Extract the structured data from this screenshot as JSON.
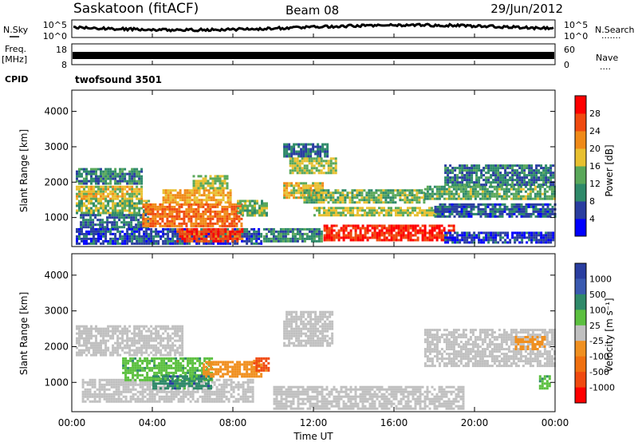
{
  "header": {
    "station": "Saskatoon (fitACF)",
    "beam": "Beam 08",
    "date": "29/Jun/2012"
  },
  "status_panel": {
    "nsky_label": "N.Sky",
    "nsearch_label": "N.Search",
    "nsky_ticks": [
      "10^5",
      "10^0"
    ],
    "nsearch_ticks": [
      "10^5",
      "10^0"
    ],
    "freq_label": "Freq.",
    "freq_unit": "[MHz]",
    "freq_ticks": [
      "18",
      "8"
    ],
    "nave_label": "Nave",
    "nave_ticks": [
      "60",
      "0"
    ],
    "cpid_label": "CPID",
    "cpid_value": "twofsound 3501"
  },
  "x_axis": {
    "label": "Time UT",
    "ticks": [
      "00:00",
      "04:00",
      "08:00",
      "12:00",
      "16:00",
      "20:00",
      "00:00"
    ]
  },
  "colors": {
    "power_scale": [
      "#0000ff",
      "#2a3ea0",
      "#2f8a6a",
      "#5aa85a",
      "#e8c030",
      "#f08a18",
      "#f04a10",
      "#ff0000"
    ],
    "velocity_scale": [
      "#ff0000",
      "#f04a10",
      "#f09020",
      "#c0c0c0",
      "#c0c0c0",
      "#5cc040",
      "#2f8a6a",
      "#2a3ea0",
      "#0000ff"
    ],
    "ground_scatter": "#c0c0c0"
  },
  "chart_data": [
    {
      "type": "heatmap",
      "title": "",
      "xlabel": "Time UT",
      "ylabel": "Slant Range [km]",
      "xlim_hours": [
        0,
        24
      ],
      "ylim": [
        180,
        4600
      ],
      "yticks": [
        1000,
        2000,
        3000,
        4000
      ],
      "colorbar": {
        "label": "Power [dB]",
        "range": [
          0,
          32
        ],
        "ticks": [
          4,
          8,
          12,
          16,
          20,
          24,
          28
        ]
      },
      "regions": [
        {
          "t0": 0.2,
          "t1": 3.5,
          "r0": 1900,
          "r1": 2400,
          "value": 10
        },
        {
          "t0": 0.2,
          "t1": 3.5,
          "r0": 1500,
          "r1": 1900,
          "value": 18
        },
        {
          "t0": 0.2,
          "t1": 4.0,
          "r0": 1100,
          "r1": 1500,
          "value": 14
        },
        {
          "t0": 0.4,
          "t1": 3.8,
          "r0": 700,
          "r1": 1100,
          "value": 8
        },
        {
          "t0": 0.2,
          "t1": 9.5,
          "r0": 200,
          "r1": 700,
          "value": 6
        },
        {
          "t0": 3.5,
          "t1": 8.5,
          "r0": 700,
          "r1": 1400,
          "value": 24
        },
        {
          "t0": 4.5,
          "t1": 8.0,
          "r0": 1400,
          "r1": 1800,
          "value": 20
        },
        {
          "t0": 6.0,
          "t1": 7.8,
          "r0": 1800,
          "r1": 2200,
          "value": 16
        },
        {
          "t0": 5.2,
          "t1": 8.5,
          "r0": 300,
          "r1": 700,
          "value": 27
        },
        {
          "t0": 8.2,
          "t1": 9.8,
          "r0": 1000,
          "r1": 1500,
          "value": 14
        },
        {
          "t0": 10.5,
          "t1": 12.8,
          "r0": 2700,
          "r1": 3100,
          "value": 8
        },
        {
          "t0": 10.8,
          "t1": 13.2,
          "r0": 2200,
          "r1": 2700,
          "value": 16
        },
        {
          "t0": 10.5,
          "t1": 12.5,
          "r0": 1500,
          "r1": 2000,
          "value": 18
        },
        {
          "t0": 11.5,
          "t1": 17.5,
          "r0": 1400,
          "r1": 1800,
          "value": 14
        },
        {
          "t0": 12.0,
          "t1": 18.5,
          "r0": 1000,
          "r1": 1300,
          "value": 16
        },
        {
          "t0": 12.5,
          "t1": 19.0,
          "r0": 350,
          "r1": 800,
          "value": 28
        },
        {
          "t0": 9.5,
          "t1": 12.5,
          "r0": 300,
          "r1": 700,
          "value": 10
        },
        {
          "t0": 17.5,
          "t1": 24.0,
          "r0": 1500,
          "r1": 1900,
          "value": 13
        },
        {
          "t0": 18.5,
          "t1": 24.0,
          "r0": 1900,
          "r1": 2500,
          "value": 9
        },
        {
          "t0": 18.0,
          "t1": 24.0,
          "r0": 1000,
          "r1": 1400,
          "value": 7
        },
        {
          "t0": 18.5,
          "t1": 24.0,
          "r0": 250,
          "r1": 600,
          "value": 5
        }
      ]
    },
    {
      "type": "heatmap",
      "title": "",
      "xlabel": "Time UT",
      "ylabel": "Slant Range [km]",
      "xlim_hours": [
        0,
        24
      ],
      "ylim": [
        180,
        4600
      ],
      "yticks": [
        1000,
        2000,
        3000,
        4000
      ],
      "colorbar": {
        "label": "Velocity [m s⁻¹]",
        "ticks": [
          "1000",
          "500",
          "100",
          "25",
          "-25",
          "-100",
          "-500",
          "-1000"
        ]
      },
      "regions": [
        {
          "t0": 0.2,
          "t1": 5.5,
          "r0": 1700,
          "r1": 2600,
          "value": 0
        },
        {
          "t0": 0.5,
          "t1": 9.0,
          "r0": 400,
          "r1": 1100,
          "value": 0
        },
        {
          "t0": 2.5,
          "t1": 7.0,
          "r0": 1000,
          "r1": 1700,
          "value": 150
        },
        {
          "t0": 4.0,
          "t1": 7.0,
          "r0": 800,
          "r1": 1200,
          "value": 300
        },
        {
          "t0": 6.5,
          "t1": 9.5,
          "r0": 1100,
          "r1": 1600,
          "value": -120
        },
        {
          "t0": 9.0,
          "t1": 9.8,
          "r0": 1300,
          "r1": 1700,
          "value": -300
        },
        {
          "t0": 10.5,
          "t1": 13.0,
          "r0": 2000,
          "r1": 3000,
          "value": 0
        },
        {
          "t0": 10.0,
          "t1": 19.5,
          "r0": 250,
          "r1": 900,
          "value": 0
        },
        {
          "t0": 17.5,
          "t1": 24.0,
          "r0": 1400,
          "r1": 2500,
          "value": 0
        },
        {
          "t0": 22.0,
          "t1": 23.5,
          "r0": 1900,
          "r1": 2300,
          "value": -120
        },
        {
          "t0": 23.2,
          "t1": 23.8,
          "r0": 800,
          "r1": 1200,
          "value": 150
        }
      ]
    }
  ]
}
